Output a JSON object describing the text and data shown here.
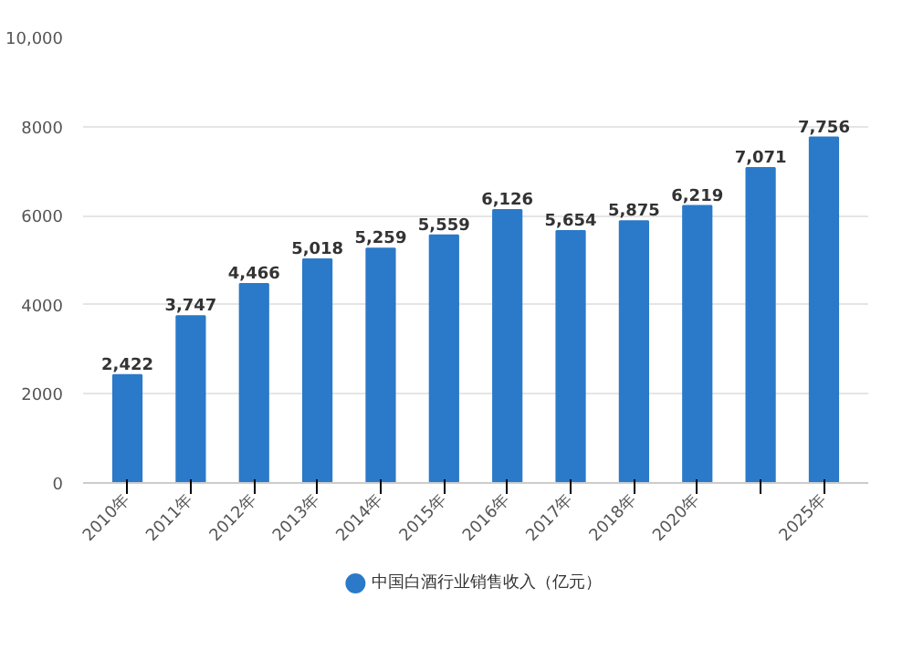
{
  "chart_data": {
    "type": "bar",
    "categories": [
      "2010年",
      "2011年",
      "2012年",
      "2013年",
      "2014年",
      "2015年",
      "2016年",
      "2017年",
      "2018年",
      "2020年",
      null,
      "2025年"
    ],
    "series": [
      {
        "name": "中国白酒行业销售收入（亿元）",
        "color": "#2b7ac9",
        "values": [
          2422,
          3747,
          4466,
          5018,
          5259,
          5559,
          6126,
          5654,
          5875,
          6219,
          7071,
          7756
        ]
      }
    ],
    "value_labels": [
      "2,422",
      "3,747",
      "4,466",
      "5,018",
      "5,259",
      "5,559",
      "6,126",
      "5,654",
      "5,875",
      "6,219",
      "7,071",
      "7,756"
    ],
    "ylim": [
      0,
      10000
    ],
    "yticks": [
      0,
      2000,
      4000,
      6000,
      8000,
      {
        "value": 10000,
        "label": "10,000"
      }
    ],
    "grid": "y",
    "legend": "bottom"
  }
}
